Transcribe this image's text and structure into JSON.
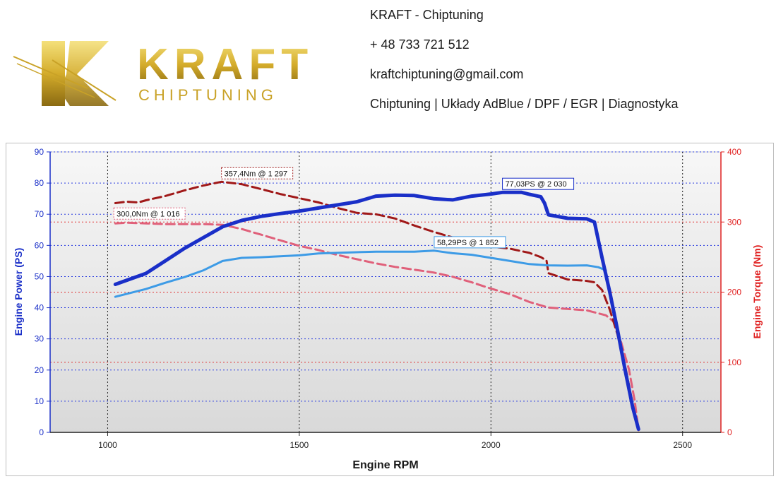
{
  "header": {
    "brand_main": "KRAFT",
    "brand_sub": "CHIPTUNING",
    "company": "KRAFT - Chiptuning",
    "phone": "+ 48 733 721 512",
    "email": "kraftchiptuning@gmail.com",
    "services": "Chiptuning | Układy AdBlue / DPF / EGR | Diagnostyka"
  },
  "colors": {
    "power_tuned": "#1a2fc8",
    "power_stock": "#3d9be6",
    "torque_tuned": "#a01818",
    "torque_stock": "#e0607a",
    "left_axis": "#1a2fc8",
    "right_axis": "#e02020",
    "brand_gold": "#c9a227"
  },
  "chart_data": {
    "type": "line",
    "xlabel": "Engine RPM",
    "ylabel_left": "Engine Power (PS)",
    "ylabel_right": "Engine Torque (Nm)",
    "xlim": [
      850,
      2600
    ],
    "ylim_left": [
      0,
      90
    ],
    "ylim_right": [
      0,
      400
    ],
    "x_ticks": [
      1000,
      1500,
      2000,
      2500
    ],
    "y_ticks_left": [
      0,
      10,
      20,
      30,
      40,
      50,
      60,
      70,
      80,
      90
    ],
    "y_ticks_right": [
      0,
      100,
      200,
      300,
      400
    ],
    "grid": true,
    "series": [
      {
        "key": "power_tuned",
        "axis": "left",
        "style": "solid",
        "width": 5,
        "points": [
          [
            1020,
            47.5
          ],
          [
            1100,
            51
          ],
          [
            1150,
            55
          ],
          [
            1200,
            59
          ],
          [
            1250,
            62.5
          ],
          [
            1300,
            66
          ],
          [
            1350,
            68
          ],
          [
            1400,
            69.3
          ],
          [
            1450,
            70.2
          ],
          [
            1500,
            71
          ],
          [
            1550,
            72
          ],
          [
            1600,
            73
          ],
          [
            1650,
            74
          ],
          [
            1700,
            75.8
          ],
          [
            1750,
            76.1
          ],
          [
            1800,
            76
          ],
          [
            1850,
            75
          ],
          [
            1900,
            74.6
          ],
          [
            1950,
            75.8
          ],
          [
            2000,
            76.5
          ],
          [
            2030,
            77
          ],
          [
            2080,
            77
          ],
          [
            2100,
            76.4
          ],
          [
            2130,
            75.6
          ],
          [
            2140,
            73.5
          ],
          [
            2150,
            69.8
          ],
          [
            2200,
            68.7
          ],
          [
            2250,
            68.5
          ],
          [
            2270,
            67.5
          ],
          [
            2290,
            56
          ],
          [
            2310,
            45
          ],
          [
            2330,
            33
          ],
          [
            2350,
            20
          ],
          [
            2370,
            8
          ],
          [
            2385,
            1
          ]
        ]
      },
      {
        "key": "power_stock",
        "axis": "left",
        "style": "solid",
        "width": 3,
        "points": [
          [
            1020,
            43.5
          ],
          [
            1100,
            46
          ],
          [
            1150,
            48
          ],
          [
            1200,
            49.8
          ],
          [
            1250,
            52
          ],
          [
            1300,
            55
          ],
          [
            1350,
            56
          ],
          [
            1400,
            56.2
          ],
          [
            1450,
            56.5
          ],
          [
            1500,
            56.8
          ],
          [
            1550,
            57.4
          ],
          [
            1600,
            57.6
          ],
          [
            1650,
            57.8
          ],
          [
            1700,
            58
          ],
          [
            1750,
            58
          ],
          [
            1800,
            58
          ],
          [
            1852,
            58.3
          ],
          [
            1900,
            57.5
          ],
          [
            1950,
            57
          ],
          [
            2000,
            56
          ],
          [
            2050,
            55
          ],
          [
            2100,
            54
          ],
          [
            2150,
            53.6
          ],
          [
            2200,
            53.5
          ],
          [
            2250,
            53.6
          ],
          [
            2280,
            53
          ],
          [
            2300,
            52
          ]
        ]
      },
      {
        "key": "torque_tuned",
        "axis": "right",
        "style": "dashed",
        "width": 3,
        "points": [
          [
            1020,
            327
          ],
          [
            1050,
            329
          ],
          [
            1080,
            328
          ],
          [
            1100,
            331
          ],
          [
            1150,
            337
          ],
          [
            1200,
            345
          ],
          [
            1250,
            352
          ],
          [
            1297,
            357.4
          ],
          [
            1350,
            354
          ],
          [
            1400,
            347
          ],
          [
            1450,
            340
          ],
          [
            1500,
            334
          ],
          [
            1550,
            328
          ],
          [
            1600,
            320
          ],
          [
            1650,
            313
          ],
          [
            1700,
            311
          ],
          [
            1750,
            305
          ],
          [
            1800,
            295
          ],
          [
            1850,
            286
          ],
          [
            1900,
            278
          ],
          [
            1950,
            272
          ],
          [
            2000,
            265
          ],
          [
            2050,
            262
          ],
          [
            2100,
            256
          ],
          [
            2130,
            250
          ],
          [
            2145,
            245
          ],
          [
            2150,
            227
          ],
          [
            2200,
            218
          ],
          [
            2250,
            216
          ],
          [
            2270,
            214
          ],
          [
            2290,
            203
          ],
          [
            2310,
            175
          ],
          [
            2330,
            140
          ],
          [
            2350,
            95
          ],
          [
            2370,
            40
          ],
          [
            2385,
            3
          ]
        ]
      },
      {
        "key": "torque_stock",
        "axis": "right",
        "style": "dashed",
        "width": 3,
        "points": [
          [
            1020,
            298
          ],
          [
            1050,
            299
          ],
          [
            1100,
            298
          ],
          [
            1150,
            297
          ],
          [
            1200,
            297
          ],
          [
            1250,
            297
          ],
          [
            1300,
            296
          ],
          [
            1350,
            290
          ],
          [
            1400,
            282
          ],
          [
            1450,
            274
          ],
          [
            1500,
            266
          ],
          [
            1550,
            260
          ],
          [
            1600,
            253
          ],
          [
            1650,
            247
          ],
          [
            1700,
            241
          ],
          [
            1750,
            236
          ],
          [
            1800,
            232
          ],
          [
            1850,
            228
          ],
          [
            1900,
            222
          ],
          [
            1950,
            214
          ],
          [
            2000,
            205
          ],
          [
            2050,
            197
          ],
          [
            2100,
            186
          ],
          [
            2150,
            178
          ],
          [
            2200,
            176
          ],
          [
            2250,
            174
          ],
          [
            2300,
            167
          ],
          [
            2320,
            158
          ],
          [
            2340,
            128
          ],
          [
            2360,
            90
          ],
          [
            2375,
            45
          ],
          [
            2385,
            3
          ]
        ]
      }
    ],
    "annotations": [
      {
        "text": "357,4Nm @ 1 297",
        "series": "torque_tuned",
        "x": 1297,
        "y": 357.4
      },
      {
        "text": "300,0Nm @ 1 016",
        "series": "torque_stock",
        "x": 1016,
        "y": 300
      },
      {
        "text": "77,03PS @ 2 030",
        "series": "power_tuned",
        "x": 2030,
        "y": 77.03
      },
      {
        "text": "58,29PS @ 1 852",
        "series": "power_stock",
        "x": 1852,
        "y": 58.29
      }
    ]
  }
}
